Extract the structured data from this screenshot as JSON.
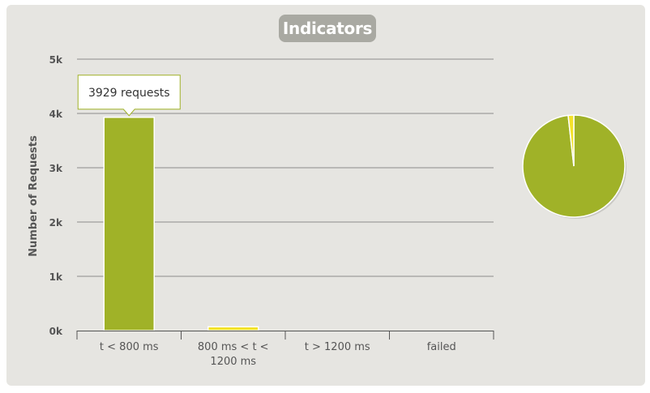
{
  "header": {
    "title": "Indicators"
  },
  "tooltip": {
    "text": "3929 requests",
    "category_index": 0
  },
  "colors": {
    "ok": "#a0b228",
    "warn": "#f4e22a",
    "grid": "#8c8c8c",
    "panel": "#e6e5e1",
    "title_bg": "#a9a9a2"
  },
  "chart_data": [
    {
      "type": "bar",
      "categories": [
        "t < 800 ms",
        "800 ms < t < 1200 ms",
        "t > 1200 ms",
        "failed"
      ],
      "category_lines": [
        [
          "t < 800 ms"
        ],
        [
          "800 ms < t <",
          "1200 ms"
        ],
        [
          "t > 1200 ms"
        ],
        [
          "failed"
        ]
      ],
      "values": [
        3929,
        71,
        0,
        0
      ],
      "bar_colors": [
        "#a0b228",
        "#f4e22a",
        "#a0b228",
        "#a0b228"
      ],
      "ylabel": "Number of Requests",
      "ylim": [
        0,
        5000
      ],
      "yticks": [
        0,
        1000,
        2000,
        3000,
        4000,
        5000
      ],
      "ytick_labels": [
        "0k",
        "1k",
        "2k",
        "3k",
        "4k",
        "5k"
      ],
      "grid": true
    },
    {
      "type": "pie",
      "labels": [
        "t < 800 ms",
        "800 ms < t < 1200 ms"
      ],
      "values": [
        3929,
        71
      ],
      "colors": [
        "#a0b228",
        "#f4e22a"
      ]
    }
  ]
}
